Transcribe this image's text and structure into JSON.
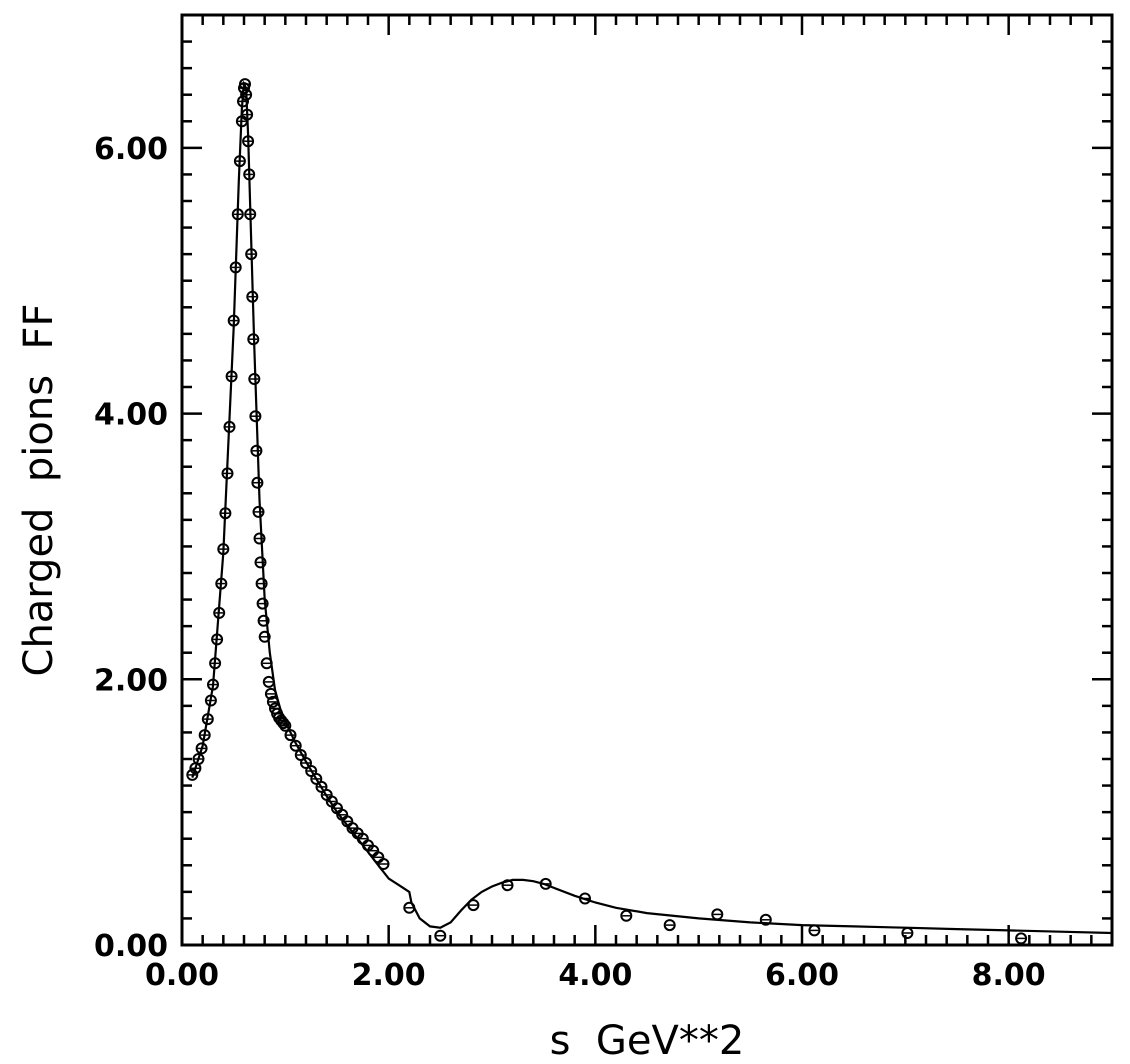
{
  "chart_data": {
    "type": "scatter",
    "title": "",
    "xlabel": "s  GeV**2",
    "ylabel": "Charged  pions  FF",
    "xlim": [
      0.0,
      9.0
    ],
    "ylim": [
      0.0,
      6.0
    ],
    "x_ticks": [
      0,
      2,
      4,
      6,
      8
    ],
    "x_tick_labels": [
      "0.00",
      "2.00",
      "4.00",
      "6.00",
      "8.00"
    ],
    "y_ticks": [
      0,
      2,
      4,
      6
    ],
    "y_tick_labels": [
      "0.00",
      "2.00",
      "4.00",
      "6.00"
    ],
    "y_max_visible": 7.0,
    "grid": false,
    "series": [
      {
        "kind": "points",
        "marker": "open-circle",
        "x": [
          0.1,
          0.13,
          0.16,
          0.19,
          0.22,
          0.25,
          0.28,
          0.3,
          0.32,
          0.34,
          0.36,
          0.38,
          0.4,
          0.42,
          0.44,
          0.46,
          0.48,
          0.5,
          0.52,
          0.54,
          0.56,
          0.58,
          0.59,
          0.6,
          0.61,
          0.62,
          0.63,
          0.64,
          0.65,
          0.66,
          0.67,
          0.68,
          0.69,
          0.7,
          0.71,
          0.72,
          0.73,
          0.74,
          0.75,
          0.76,
          0.77,
          0.78,
          0.79,
          0.8,
          0.82,
          0.84,
          0.86,
          0.88,
          0.9,
          0.92,
          0.94,
          0.96,
          0.98,
          1.0,
          1.05,
          1.1,
          1.15,
          1.2,
          1.25,
          1.3,
          1.35,
          1.4,
          1.45,
          1.5,
          1.55,
          1.6,
          1.65,
          1.7,
          1.75,
          1.8,
          1.85,
          1.9,
          1.95,
          2.2,
          2.5,
          2.82,
          3.15,
          3.52,
          3.9,
          4.3,
          4.72,
          5.18,
          5.65,
          6.12,
          7.02,
          8.12
        ],
        "y": [
          1.28,
          1.33,
          1.4,
          1.48,
          1.58,
          1.7,
          1.84,
          1.96,
          2.12,
          2.3,
          2.5,
          2.72,
          2.98,
          3.25,
          3.55,
          3.9,
          4.28,
          4.7,
          5.1,
          5.5,
          5.9,
          6.2,
          6.35,
          6.45,
          6.48,
          6.4,
          6.25,
          6.05,
          5.8,
          5.5,
          5.2,
          4.88,
          4.56,
          4.26,
          3.98,
          3.72,
          3.48,
          3.26,
          3.06,
          2.88,
          2.72,
          2.57,
          2.44,
          2.32,
          2.12,
          1.98,
          1.89,
          1.83,
          1.78,
          1.74,
          1.71,
          1.69,
          1.67,
          1.65,
          1.58,
          1.5,
          1.43,
          1.37,
          1.31,
          1.25,
          1.19,
          1.13,
          1.08,
          1.03,
          0.98,
          0.93,
          0.88,
          0.84,
          0.8,
          0.75,
          0.71,
          0.66,
          0.61,
          0.28,
          0.07,
          0.3,
          0.45,
          0.46,
          0.35,
          0.22,
          0.15,
          0.23,
          0.19,
          0.11,
          0.09,
          0.05
        ]
      },
      {
        "kind": "curve",
        "x": [
          0.1,
          0.2,
          0.3,
          0.4,
          0.5,
          0.55,
          0.58,
          0.6,
          0.62,
          0.64,
          0.67,
          0.7,
          0.75,
          0.8,
          0.85,
          0.9,
          0.95,
          1.0,
          1.1,
          1.2,
          1.3,
          1.4,
          1.5,
          1.6,
          1.7,
          1.8,
          1.9,
          2.0,
          2.1,
          2.2,
          2.22,
          2.3,
          2.4,
          2.5,
          2.6,
          2.7,
          2.8,
          2.9,
          3.0,
          3.1,
          3.2,
          3.3,
          3.4,
          3.5,
          3.6,
          3.8,
          4.0,
          4.2,
          4.5,
          5.0,
          5.5,
          6.0,
          6.5,
          7.0,
          7.5,
          8.0,
          8.5,
          9.0
        ],
        "y": [
          1.26,
          1.5,
          1.95,
          2.95,
          4.65,
          5.75,
          6.3,
          6.48,
          6.45,
          6.1,
          5.3,
          4.5,
          3.35,
          2.6,
          2.2,
          1.92,
          1.78,
          1.68,
          1.52,
          1.38,
          1.25,
          1.12,
          1.0,
          0.9,
          0.8,
          0.7,
          0.6,
          0.5,
          0.45,
          0.4,
          0.32,
          0.2,
          0.14,
          0.13,
          0.17,
          0.26,
          0.34,
          0.4,
          0.44,
          0.47,
          0.49,
          0.49,
          0.48,
          0.46,
          0.43,
          0.37,
          0.32,
          0.28,
          0.24,
          0.2,
          0.17,
          0.15,
          0.14,
          0.13,
          0.12,
          0.11,
          0.1,
          0.09
        ]
      }
    ]
  }
}
